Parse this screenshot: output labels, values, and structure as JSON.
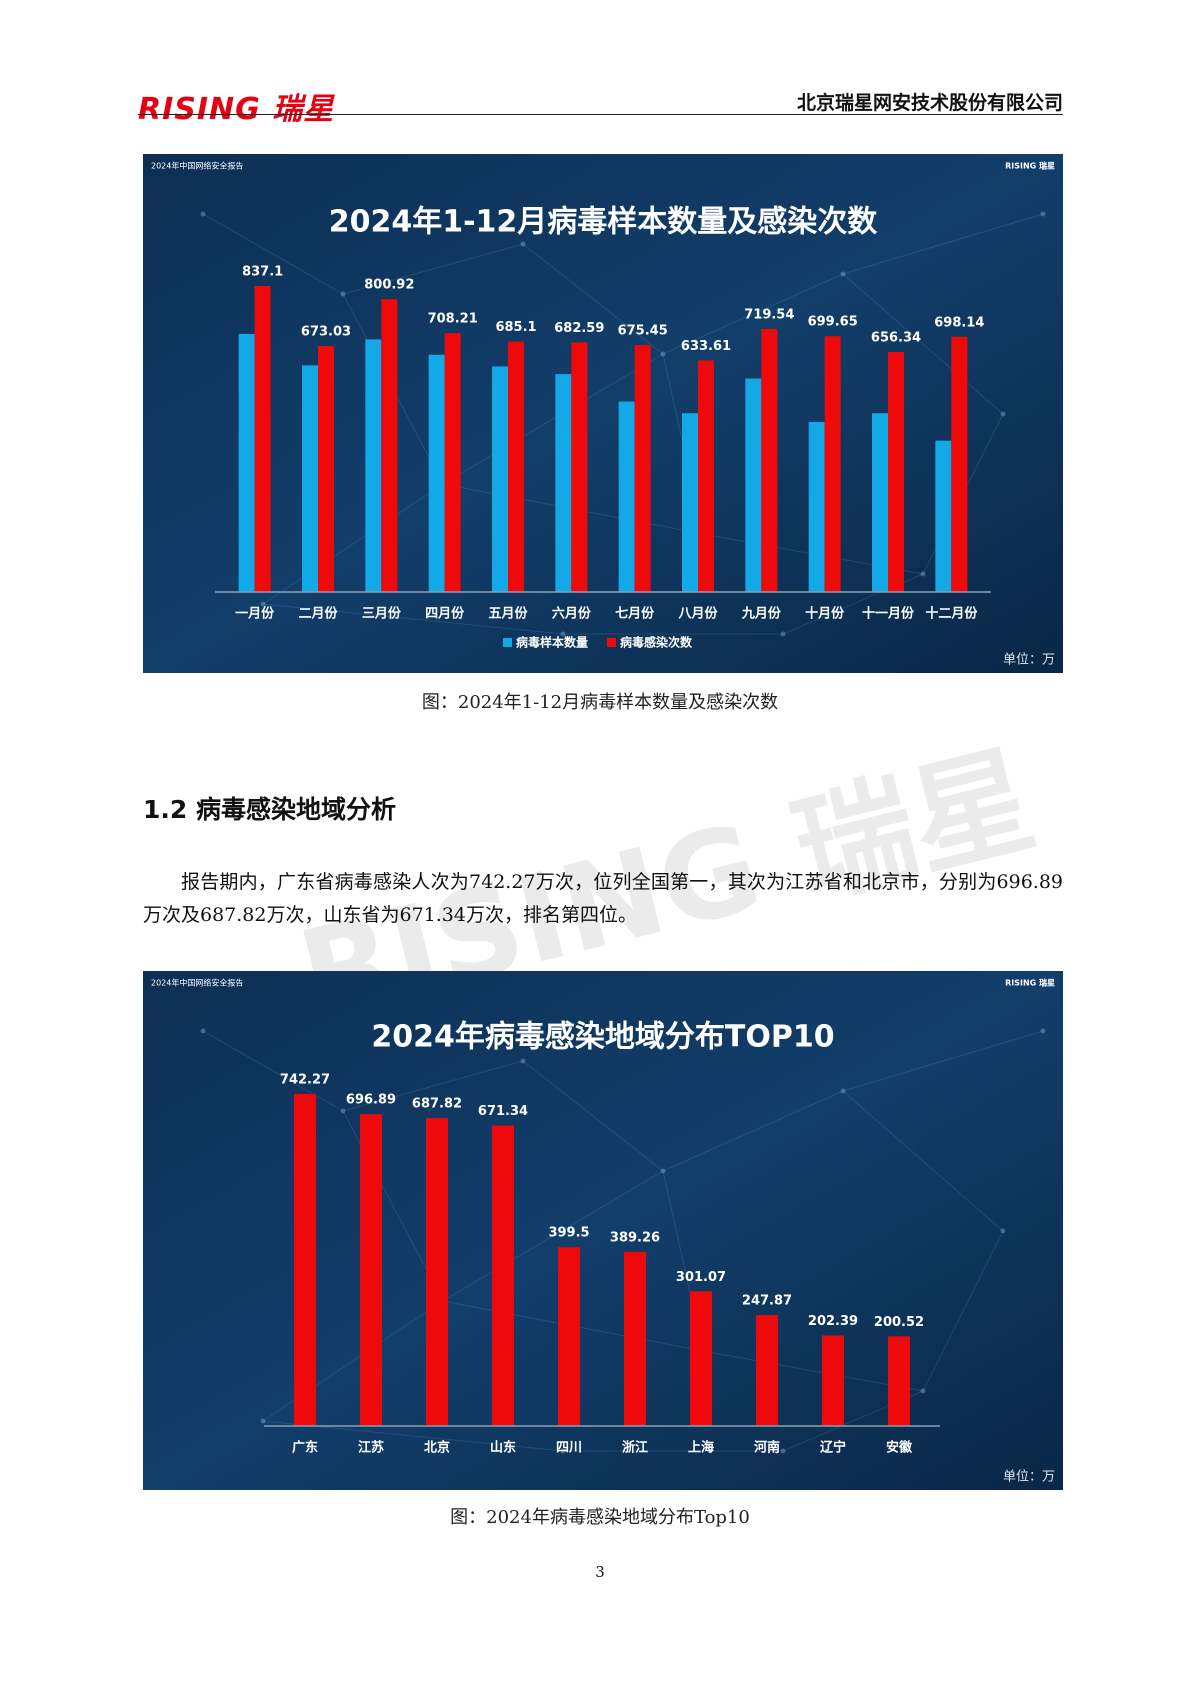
{
  "header": {
    "logo": "RISING 瑞星",
    "company": "北京瑞星网安技术股份有限公司"
  },
  "chart_data": [
    {
      "type": "bar",
      "title": "2024年1-12月病毒样本数量及感染次数",
      "source": "2024年中国网络安全报告",
      "brand": "RISING 瑞星",
      "unit_note": "单位：万",
      "categories": [
        "一月份",
        "二月份",
        "三月份",
        "四月份",
        "五月份",
        "六月份",
        "七月份",
        "八月份",
        "九月份",
        "十月份",
        "十一月份",
        "十二月份"
      ],
      "series": [
        {
          "name": "病毒样本数量",
          "color": "#12a9e6",
          "values": [
            706,
            620,
            691,
            649,
            617,
            596,
            521,
            489,
            584,
            465,
            489,
            414
          ]
        },
        {
          "name": "病毒感染次数",
          "color": "#ee0a0a",
          "values": [
            837.1,
            673.03,
            800.92,
            708.21,
            685.1,
            682.59,
            675.45,
            633.61,
            719.54,
            699.65,
            656.34,
            698.14
          ],
          "labels": true
        }
      ],
      "ylim": [
        0,
        900
      ]
    },
    {
      "type": "bar",
      "title": "2024年病毒感染地域分布TOP10",
      "source": "2024年中国网络安全报告",
      "brand": "RISING 瑞星",
      "unit_note": "单位：万",
      "categories": [
        "广东",
        "江苏",
        "北京",
        "山东",
        "四川",
        "浙江",
        "上海",
        "河南",
        "辽宁",
        "安徽"
      ],
      "values": [
        742.27,
        696.89,
        687.82,
        671.34,
        399.5,
        389.26,
        301.07,
        247.87,
        202.39,
        200.52
      ],
      "color": "#ee0a0a",
      "ylim": [
        0,
        800
      ]
    }
  ],
  "captions": [
    "图：2024年1-12月病毒样本数量及感染次数",
    "图：2024年病毒感染地域分布Top10"
  ],
  "section": {
    "heading": "1.2 病毒感染地域分析",
    "paragraph": "报告期内，广东省病毒感染人次为742.27万次，位列全国第一，其次为江苏省和北京市，分别为696.89万次及687.82万次，山东省为671.34万次，排名第四位。"
  },
  "watermark": "RISING 瑞星",
  "page_number": 3
}
